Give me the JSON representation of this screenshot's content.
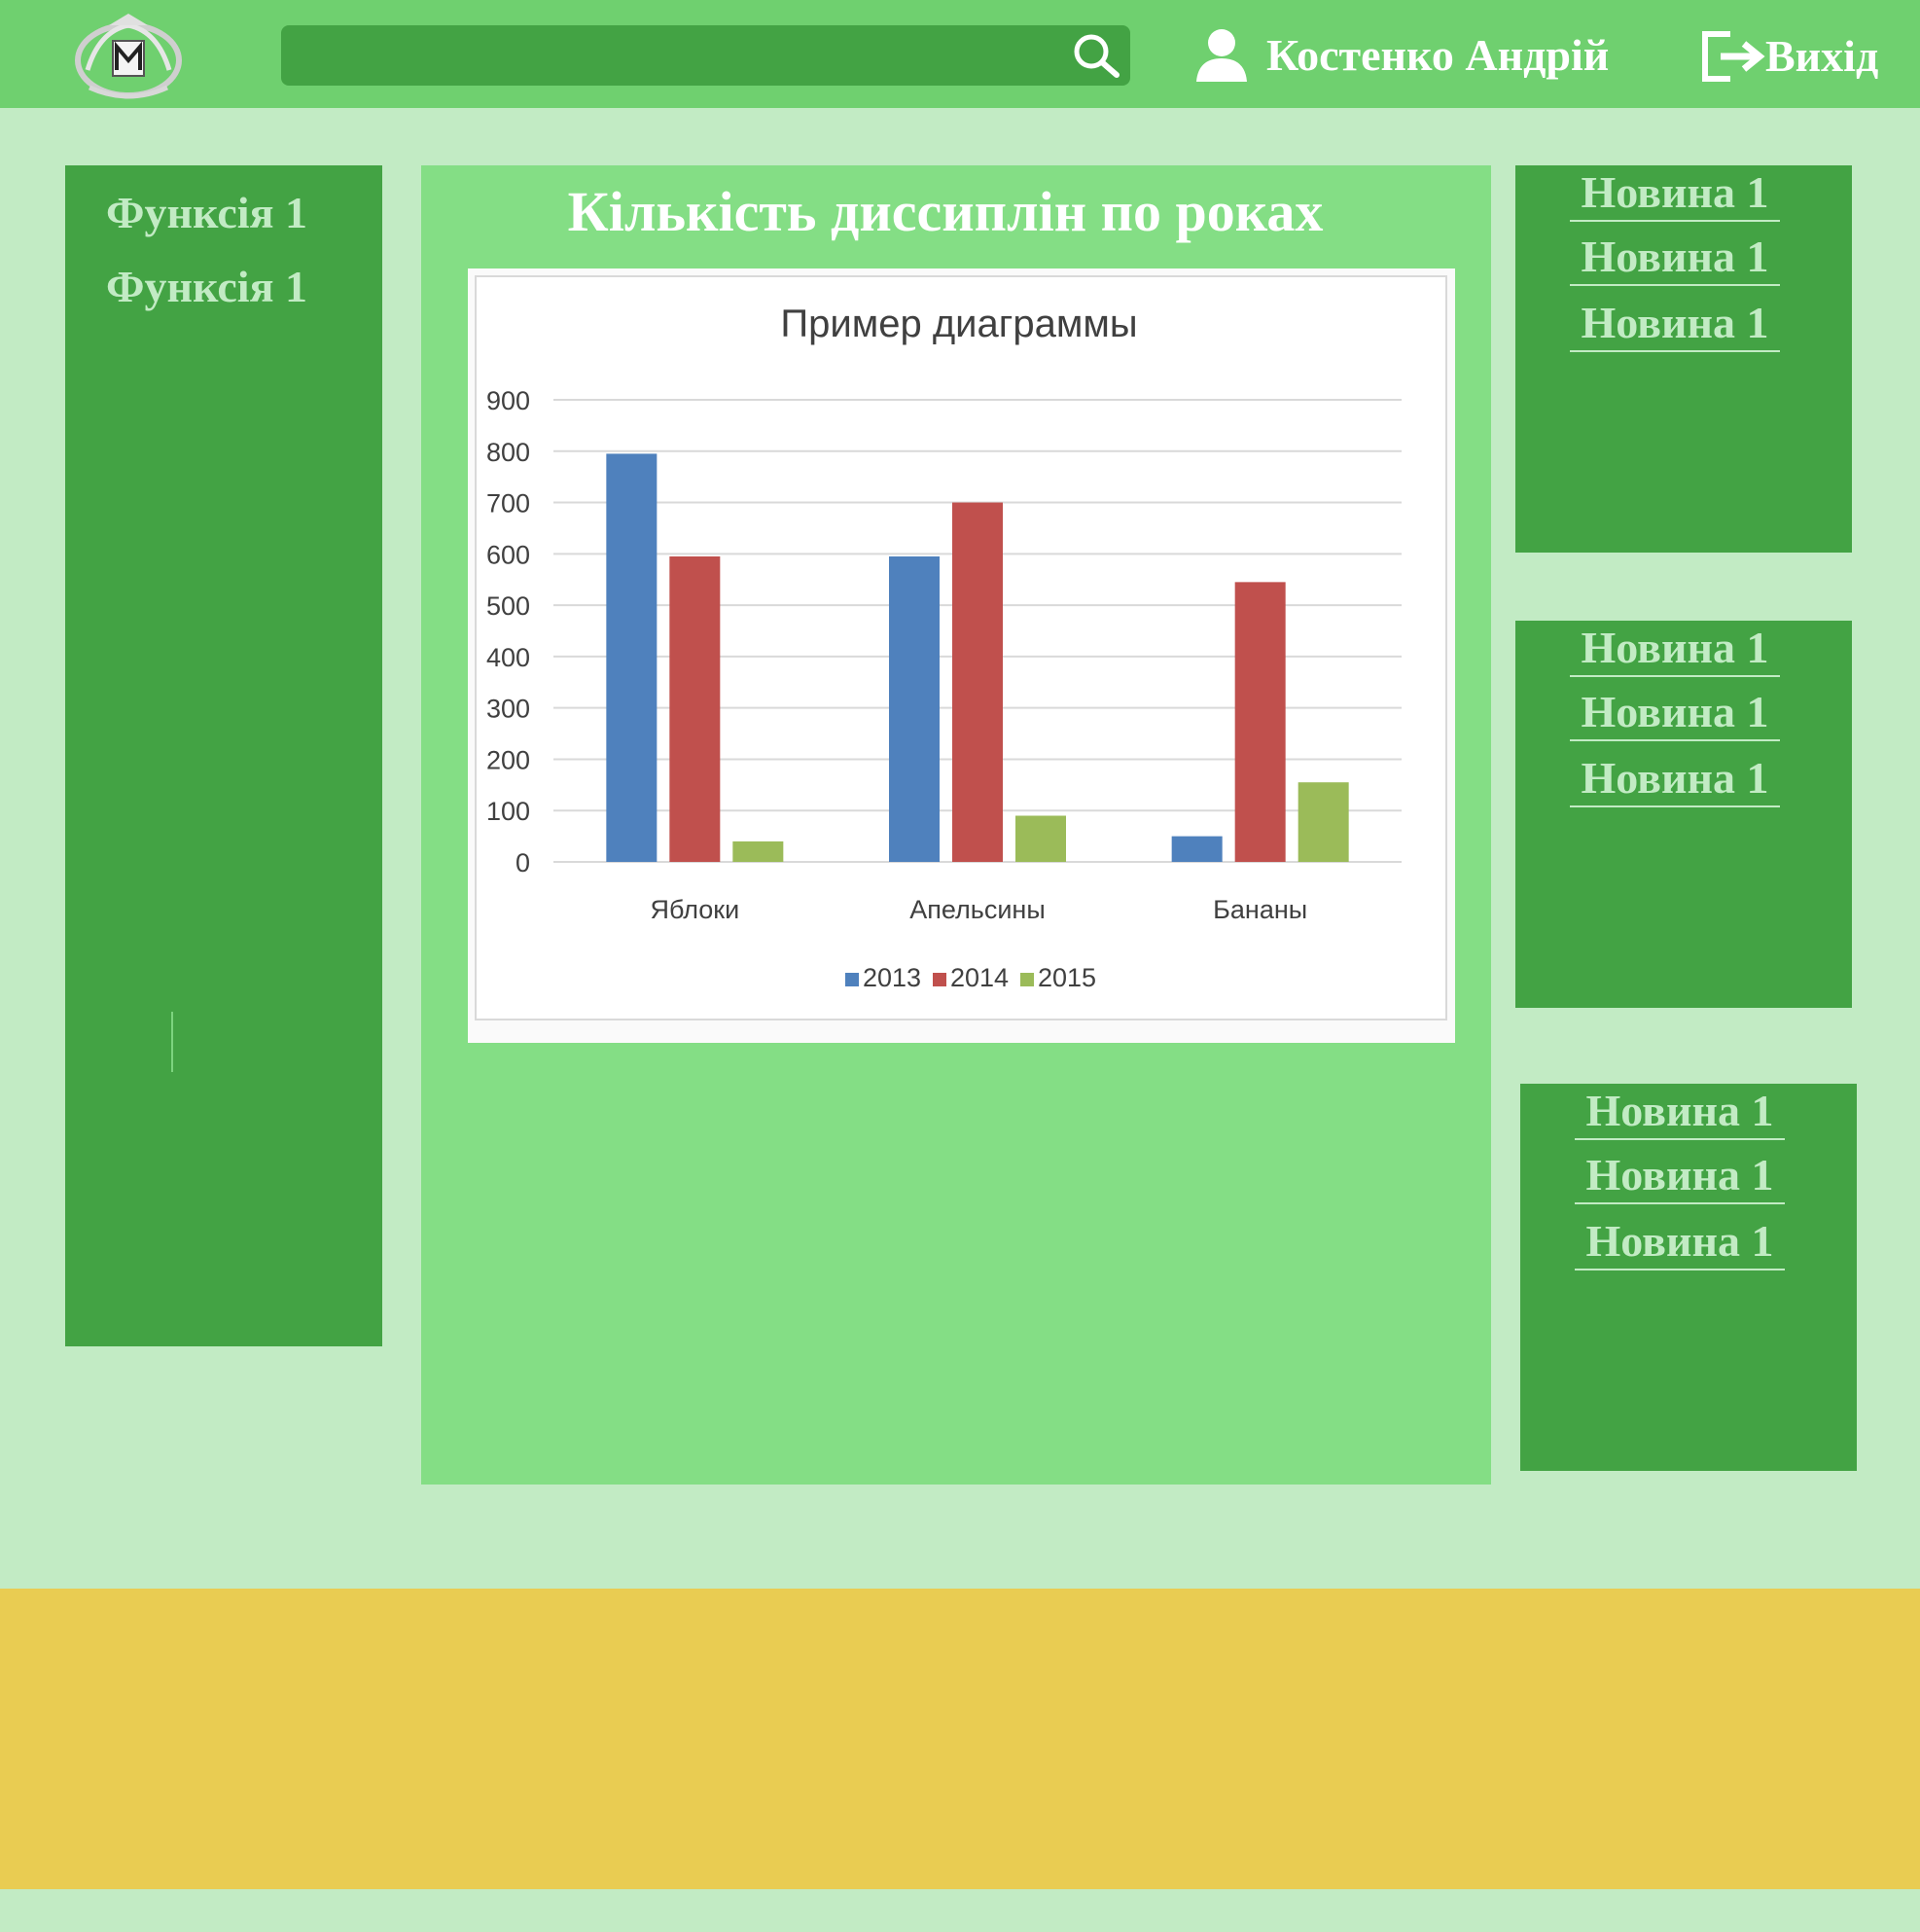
{
  "header": {
    "search": {
      "placeholder": "",
      "value": "",
      "icon": "search-icon"
    },
    "user_name": "Костенко Андрій",
    "user_icon": "user-icon",
    "logout_label": "Вихід",
    "logout_icon": "logout-icon",
    "colors": {
      "bar": "#6fd06f",
      "search": "#43a344"
    }
  },
  "sidebar": {
    "items": [
      {
        "label": "Функсія 1"
      },
      {
        "label": "Функсія 1"
      }
    ]
  },
  "main": {
    "title": "Кількість диссиплін по роках"
  },
  "news": [
    {
      "items": [
        {
          "label": "Новина 1"
        },
        {
          "label": "Новина 1"
        },
        {
          "label": "Новина 1"
        }
      ]
    },
    {
      "items": [
        {
          "label": "Новина 1"
        },
        {
          "label": "Новина 1"
        },
        {
          "label": "Новина 1"
        }
      ]
    },
    {
      "items": [
        {
          "label": "Новина 1"
        },
        {
          "label": "Новина 1"
        },
        {
          "label": "Новина 1"
        }
      ]
    }
  ],
  "colors": {
    "page_bg": "#c2ebc4",
    "panel_dark": "#43a344",
    "panel_light": "#84de85",
    "footer": "#e9cc52"
  },
  "chart_data": {
    "type": "bar",
    "title": "Пример диаграммы",
    "xlabel": "",
    "ylabel": "",
    "categories": [
      "Яблоки",
      "Апельсины",
      "Бананы"
    ],
    "series": [
      {
        "name": "2013",
        "values": [
          795,
          595,
          50
        ],
        "color": "#4f81bd"
      },
      {
        "name": "2014",
        "values": [
          595,
          700,
          545
        ],
        "color": "#c0504d"
      },
      {
        "name": "2015",
        "values": [
          40,
          90,
          155
        ],
        "color": "#9bbb59"
      }
    ],
    "ylim": [
      0,
      900
    ],
    "yticks": [
      "0",
      "100",
      "200",
      "300",
      "400",
      "500",
      "600",
      "700",
      "800",
      "900"
    ],
    "grid": true,
    "legend": "bottom"
  }
}
